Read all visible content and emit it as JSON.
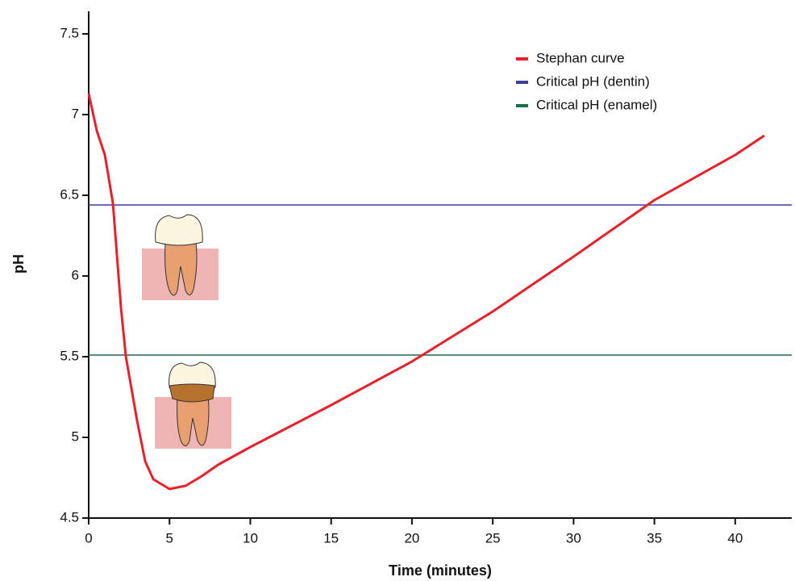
{
  "chart_data": {
    "type": "line",
    "xlabel": "Time (minutes)",
    "ylabel": "pH",
    "series": [
      {
        "name": "Stephan curve",
        "color": "#e8202a",
        "x": [
          0,
          0.5,
          1,
          1.5,
          2,
          2.3,
          3,
          3.5,
          4,
          5,
          6,
          7,
          8,
          10,
          15,
          20,
          25,
          30,
          33,
          35,
          40,
          41.8
        ],
        "values": [
          7.13,
          6.9,
          6.75,
          6.45,
          5.8,
          5.5,
          5.1,
          4.85,
          4.74,
          4.68,
          4.7,
          4.76,
          4.83,
          4.94,
          5.2,
          5.47,
          5.78,
          6.12,
          6.33,
          6.47,
          6.75,
          6.87
        ]
      }
    ],
    "reference_lines": [
      {
        "name": "Critical pH (dentin)",
        "color": "#3b3f96",
        "value": 6.44
      },
      {
        "name": "Critical pH (enamel)",
        "color": "#1a6e46",
        "value": 5.51
      }
    ],
    "xlim": [
      0,
      43.5
    ],
    "ylim": [
      4.5,
      7.64
    ],
    "xticks": [
      0,
      5,
      10,
      15,
      20,
      25,
      30,
      35,
      40
    ],
    "yticks": [
      4.5,
      5,
      5.5,
      6,
      6.5,
      7,
      7.5
    ],
    "legend": "upper-right"
  }
}
